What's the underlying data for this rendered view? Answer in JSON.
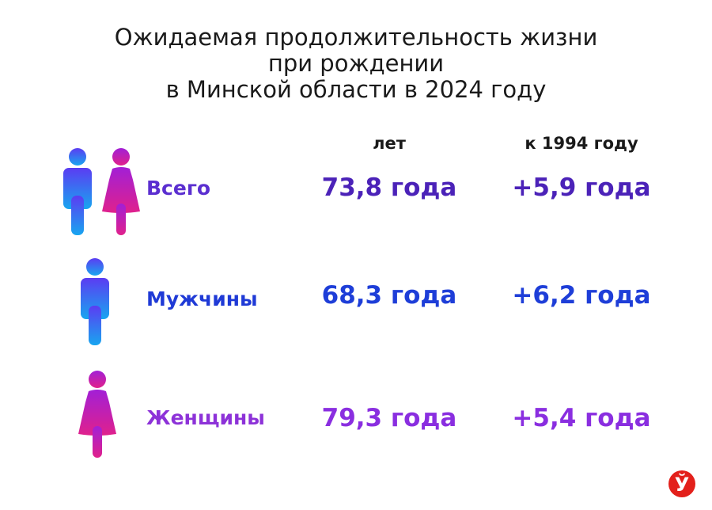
{
  "title_lines": [
    "Ожидаемая продолжительность жизни",
    "при рождении",
    "в Минской области в 2024 году"
  ],
  "table": {
    "columns": [
      "лет",
      "к 1994 году"
    ],
    "rows": [
      {
        "label": "Всего",
        "value": "73,8 года",
        "change": "+5,9 года"
      },
      {
        "label": "Мужчины",
        "value": "68,3 года",
        "change": "+6,2 года"
      },
      {
        "label": "Женщины",
        "value": "79,3 года",
        "change": "+5,4 года"
      }
    ]
  },
  "logo": "Ў"
}
